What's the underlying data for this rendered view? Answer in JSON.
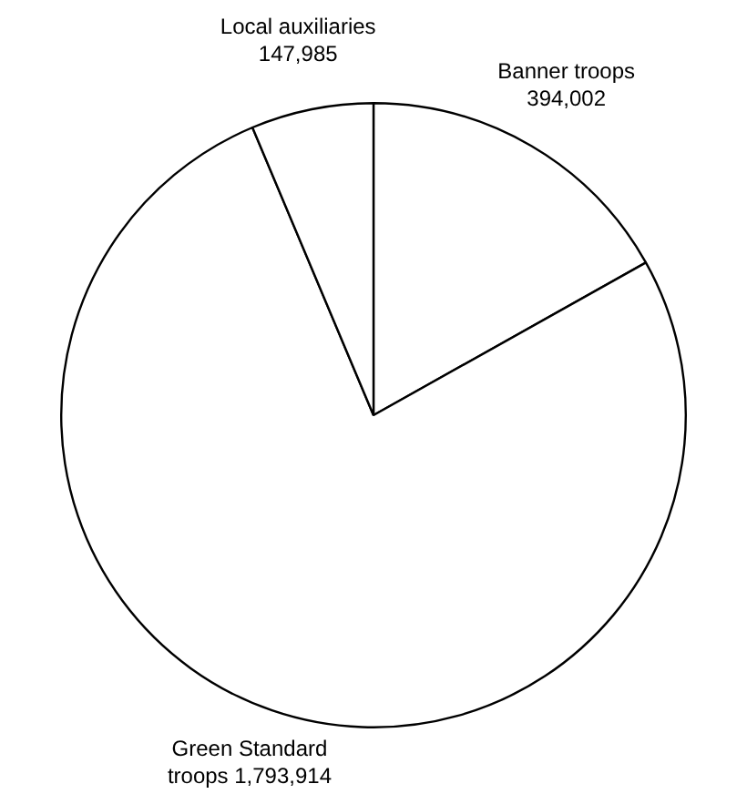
{
  "chart_data": {
    "type": "pie",
    "categories": [
      "Banner troops",
      "Green Standard troops",
      "Local auxiliaries"
    ],
    "values": [
      394002,
      1793914,
      147985
    ],
    "colors": [
      "#ffffff",
      "#ffffff",
      "#ffffff"
    ],
    "value_labels": [
      "394,002",
      "1,793,914",
      "147,985"
    ],
    "legend": false
  }
}
